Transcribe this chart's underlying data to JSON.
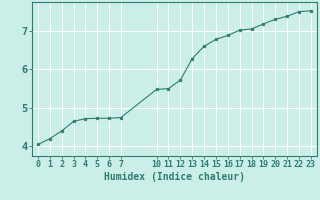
{
  "x": [
    0,
    1,
    2,
    3,
    4,
    5,
    6,
    7,
    10,
    11,
    12,
    13,
    14,
    15,
    16,
    17,
    18,
    19,
    20,
    21,
    22,
    23
  ],
  "y": [
    4.05,
    4.2,
    4.4,
    4.65,
    4.72,
    4.73,
    4.73,
    4.75,
    5.48,
    5.5,
    5.72,
    6.28,
    6.6,
    6.78,
    6.88,
    7.02,
    7.05,
    7.18,
    7.3,
    7.38,
    7.5,
    7.52
  ],
  "xticks": [
    0,
    1,
    2,
    3,
    4,
    5,
    6,
    7,
    10,
    11,
    12,
    13,
    14,
    15,
    16,
    17,
    18,
    19,
    20,
    21,
    22,
    23
  ],
  "xticklabels": [
    "0",
    "1",
    "2",
    "3",
    "4",
    "5",
    "6",
    "7",
    "10",
    "11",
    "12",
    "13",
    "14",
    "15",
    "16",
    "17",
    "18",
    "19",
    "20",
    "21",
    "22",
    "23"
  ],
  "yticks": [
    4,
    5,
    6,
    7
  ],
  "xlim": [
    -0.5,
    23.5
  ],
  "ylim": [
    3.75,
    7.75
  ],
  "xlabel": "Humidex (Indice chaleur)",
  "line_color": "#2e7d6e",
  "marker_color": "#2e7d6e",
  "bg_color": "#cceee8",
  "grid_color": "#ffffff",
  "axis_color": "#2e7d6e",
  "tick_color": "#2e7d6e",
  "label_color": "#2e7d6e",
  "xlabel_fontsize": 7,
  "tick_fontsize": 6
}
